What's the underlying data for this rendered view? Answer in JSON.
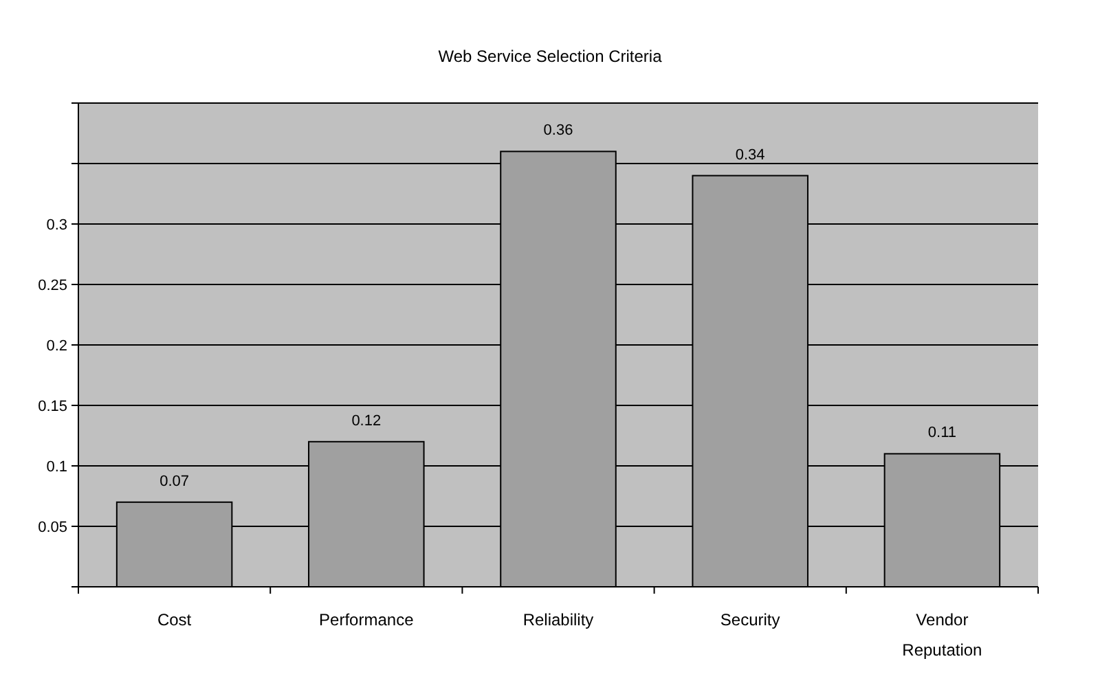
{
  "chart_data": {
    "type": "bar",
    "title": "Web  Service Selection Criteria",
    "categories": [
      "Cost",
      "Performance",
      "Reliability",
      "Security",
      "Vendor Reputation"
    ],
    "values": [
      0.07,
      0.12,
      0.36,
      0.34,
      0.11
    ],
    "color": "#a0a0a0",
    "ylim": [
      0,
      0.4
    ],
    "yticks": [
      {
        "value": 0,
        "label": null
      },
      0.05,
      0.1,
      0.15,
      0.2,
      0.25,
      0.3,
      {
        "value": 0.35,
        "label": null
      },
      {
        "value": 0.4,
        "label": null
      }
    ],
    "grid": "y",
    "data_labels": true
  }
}
